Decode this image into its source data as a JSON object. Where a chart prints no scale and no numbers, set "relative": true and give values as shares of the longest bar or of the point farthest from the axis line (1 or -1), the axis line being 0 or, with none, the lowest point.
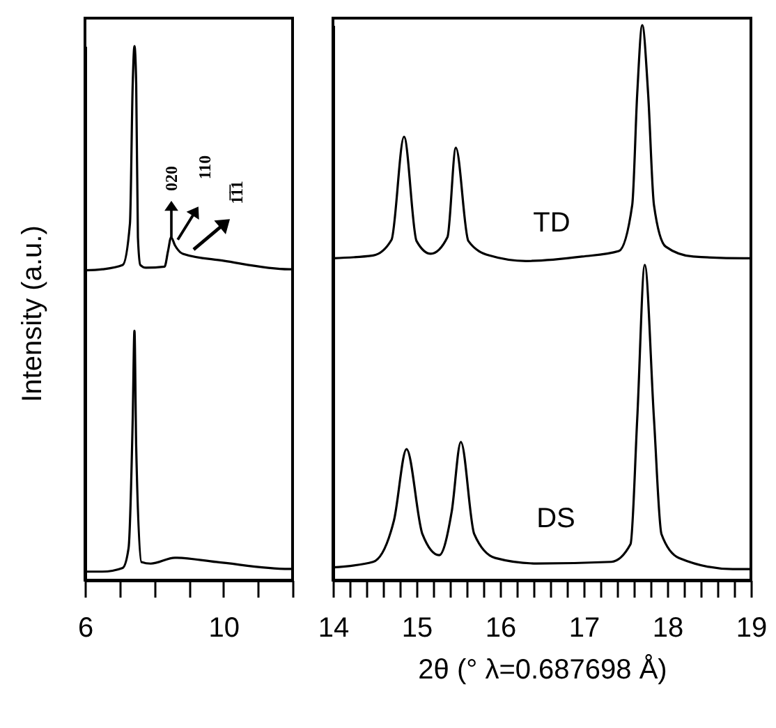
{
  "chart_data": [
    {
      "type": "line",
      "relative": true,
      "ylabel": "Intensity (a.u.)",
      "tick_labels": "x",
      "xlim": [
        6,
        12
      ],
      "xticks": [
        6,
        {
          "value": 7,
          "label": null
        },
        {
          "value": 8,
          "label": null
        },
        {
          "value": 9,
          "label": null
        },
        10,
        {
          "value": 11,
          "label": null
        },
        {
          "value": 12,
          "label": null
        }
      ],
      "series": [
        {
          "color": "#000000",
          "x": [
            6,
            6.5,
            7.09,
            7.3,
            7.38,
            7.43,
            7.48,
            7.53,
            7.6,
            7.76,
            8.3,
            8.4,
            8.49,
            8.6,
            8.83,
            10,
            11.9,
            12
          ],
          "values": [
            0.58,
            0.582,
            0.59,
            0.668,
            0.93,
            1,
            0.93,
            0.642,
            0.59,
            0.585,
            0.587,
            0.616,
            0.642,
            0.627,
            0.611,
            0.598,
            0.582,
            0.582
          ]
        },
        {
          "color": "#000000",
          "x": [
            6,
            6.5,
            7.09,
            7.26,
            7.38,
            7.43,
            7.48,
            7.63,
            7.9,
            8.6,
            9.8,
            11.9,
            12
          ],
          "values": [
            0.016,
            0.016,
            0.023,
            0.06,
            0.303,
            0.467,
            0.25,
            0.034,
            0.031,
            0.042,
            0.034,
            0.021,
            0.021
          ]
        }
      ],
      "annotations": [
        "020",
        "110",
        "1̅1̅1"
      ]
    },
    {
      "type": "line",
      "relative": true,
      "xlabel": "2θ  (° λ=0.687698 Å)",
      "tick_labels": "x",
      "xlim": [
        14,
        19
      ],
      "xticks": [
        14,
        {
          "value": 14.2,
          "label": null
        },
        {
          "value": 14.4,
          "label": null
        },
        {
          "value": 14.6,
          "label": null
        },
        {
          "value": 14.8,
          "label": null
        },
        15,
        {
          "value": 15.2,
          "label": null
        },
        {
          "value": 15.4,
          "label": null
        },
        {
          "value": 15.6,
          "label": null
        },
        {
          "value": 15.8,
          "label": null
        },
        16,
        {
          "value": 16.2,
          "label": null
        },
        {
          "value": 16.4,
          "label": null
        },
        {
          "value": 16.6,
          "label": null
        },
        {
          "value": 16.8,
          "label": null
        },
        17,
        {
          "value": 17.2,
          "label": null
        },
        {
          "value": 17.4,
          "label": null
        },
        {
          "value": 17.6,
          "label": null
        },
        {
          "value": 17.8,
          "label": null
        },
        18,
        {
          "value": 18.2,
          "label": null
        },
        {
          "value": 18.4,
          "label": null
        },
        {
          "value": 18.6,
          "label": null
        },
        {
          "value": 18.8,
          "label": null
        },
        19
      ],
      "series": [
        {
          "name": "TD",
          "color": "#000000",
          "x": [
            14,
            14.48,
            14.7,
            14.85,
            15.0,
            15.17,
            15.37,
            15.47,
            15.62,
            15.87,
            16.31,
            16.98,
            17.42,
            17.58,
            17.64,
            17.7,
            17.77,
            17.84,
            17.98,
            18.31,
            18.92,
            19
          ],
          "values": [
            0.58,
            0.585,
            0.613,
            0.799,
            0.611,
            0.588,
            0.618,
            0.779,
            0.611,
            0.585,
            0.575,
            0.583,
            0.593,
            0.676,
            0.877,
            1,
            0.877,
            0.676,
            0.601,
            0.583,
            0.58,
            0.58
          ]
        },
        {
          "name": "DS",
          "color": "#000000",
          "x": [
            14,
            14.48,
            14.73,
            14.88,
            15.07,
            15.27,
            15.42,
            15.53,
            15.69,
            15.94,
            16.44,
            17.33,
            17.56,
            17.64,
            17.73,
            17.84,
            17.93,
            18.14,
            18.78,
            19
          ],
          "values": [
            0.023,
            0.033,
            0.108,
            0.236,
            0.083,
            0.045,
            0.123,
            0.249,
            0.083,
            0.04,
            0.03,
            0.033,
            0.065,
            0.291,
            0.568,
            0.291,
            0.083,
            0.04,
            0.02,
            0.02
          ]
        }
      ]
    }
  ]
}
